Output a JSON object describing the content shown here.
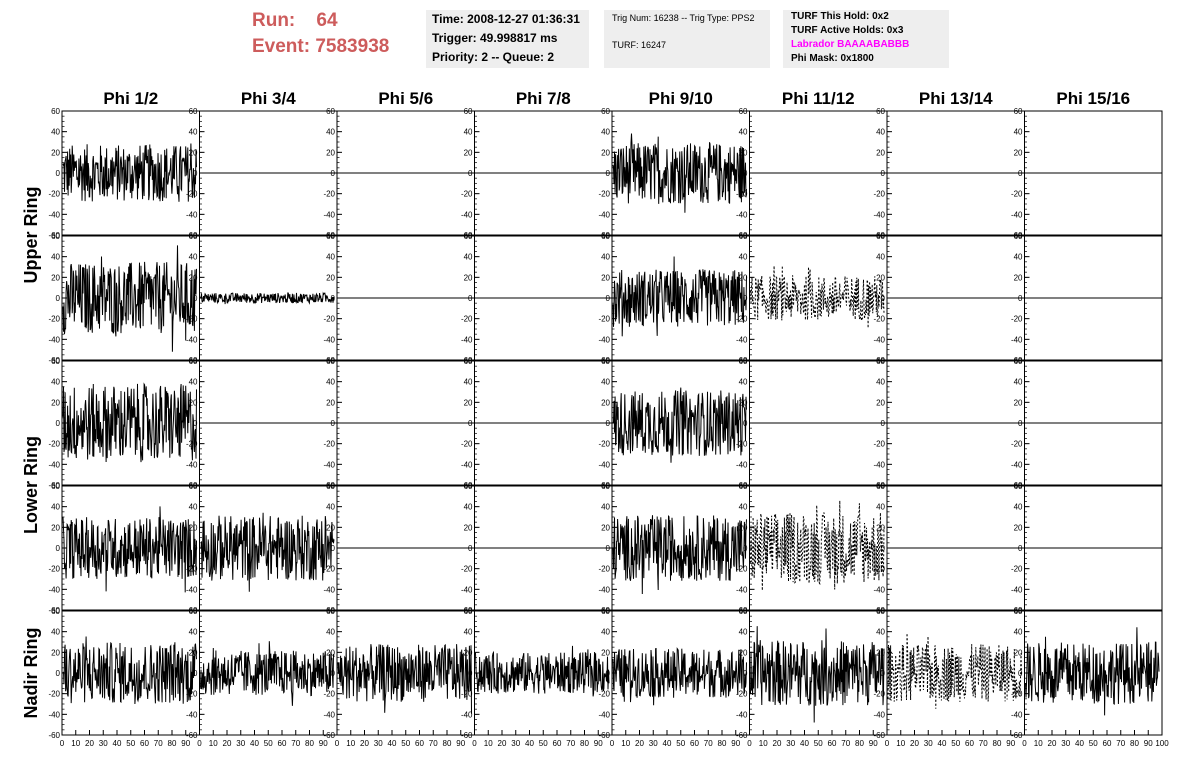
{
  "header": {
    "run_label": "Run:",
    "run_value": "64",
    "event_label": "Event:",
    "event_value": "7583938",
    "time": "Time: 2008-12-27 01:36:31",
    "trigger": "Trigger: 49.998817 ms",
    "priority": "Priority: 2 -- Queue: 2",
    "trig_num": "Trig Num: 16238 -- Trig Type: PPS2",
    "turf_num": "TURF: 16247",
    "turf_this_hold": "TURF This Hold: 0x2",
    "turf_active_holds": "TURF Active Holds: 0x3",
    "labrador": "Labrador BAAAABABBB",
    "phi_mask": "Phi Mask: 0x1800"
  },
  "colors": {
    "run_text": "#cd5c5c",
    "labrador": "#ff00ff",
    "box_bg": "#eeeeee",
    "trace": "#000000"
  },
  "chart_data": {
    "type": "line",
    "columns": [
      "Phi 1/2",
      "Phi 3/4",
      "Phi 5/6",
      "Phi 7/8",
      "Phi 9/10",
      "Phi 11/12",
      "Phi 13/14",
      "Phi 15/16"
    ],
    "rings": [
      {
        "label": "Upper Ring",
        "rows": 2
      },
      {
        "label": "Lower Ring",
        "rows": 2
      },
      {
        "label": "Nadir Ring",
        "rows": 1
      }
    ],
    "ylim": [
      -60,
      60
    ],
    "yticks": [
      -60,
      -40,
      -20,
      0,
      20,
      40,
      60
    ],
    "xlim": [
      0,
      100
    ],
    "xticks": [
      0,
      10,
      20,
      30,
      40,
      50,
      60,
      70,
      80,
      90,
      100
    ],
    "panels": [
      [
        {
          "amp": 28,
          "style": "solid"
        },
        {
          "amp": 0,
          "style": "flat"
        },
        {
          "amp": 0,
          "style": "flat"
        },
        {
          "amp": 0,
          "style": "flat"
        },
        {
          "amp": 30,
          "style": "solid"
        },
        {
          "amp": 0,
          "style": "flat"
        },
        {
          "amp": 0,
          "style": "flat"
        },
        {
          "amp": 0,
          "style": "flat"
        }
      ],
      [
        {
          "amp": 35,
          "style": "solid"
        },
        {
          "amp": 5,
          "style": "solid"
        },
        {
          "amp": 0,
          "style": "flat"
        },
        {
          "amp": 0,
          "style": "flat"
        },
        {
          "amp": 28,
          "style": "solid"
        },
        {
          "amp": 22,
          "style": "dotted"
        },
        {
          "amp": 0,
          "style": "flat"
        },
        {
          "amp": 0,
          "style": "flat"
        }
      ],
      [
        {
          "amp": 38,
          "style": "solid"
        },
        {
          "amp": 0,
          "style": "flat"
        },
        {
          "amp": 0,
          "style": "flat"
        },
        {
          "amp": 0,
          "style": "flat"
        },
        {
          "amp": 32,
          "style": "solid"
        },
        {
          "amp": 0,
          "style": "flat"
        },
        {
          "amp": 0,
          "style": "flat"
        },
        {
          "amp": 0,
          "style": "flat"
        }
      ],
      [
        {
          "amp": 30,
          "style": "solid"
        },
        {
          "amp": 32,
          "style": "solid"
        },
        {
          "amp": 0,
          "style": "flat"
        },
        {
          "amp": 0,
          "style": "flat"
        },
        {
          "amp": 32,
          "style": "solid"
        },
        {
          "amp": 35,
          "style": "dotted"
        },
        {
          "amp": 0,
          "style": "flat"
        },
        {
          "amp": 0,
          "style": "flat"
        }
      ],
      [
        {
          "amp": 30,
          "style": "solid"
        },
        {
          "amp": 22,
          "style": "solid"
        },
        {
          "amp": 28,
          "style": "solid"
        },
        {
          "amp": 20,
          "style": "solid"
        },
        {
          "amp": 24,
          "style": "solid"
        },
        {
          "amp": 32,
          "style": "solid"
        },
        {
          "amp": 28,
          "style": "dotted"
        },
        {
          "amp": 30,
          "style": "solid"
        }
      ]
    ]
  }
}
